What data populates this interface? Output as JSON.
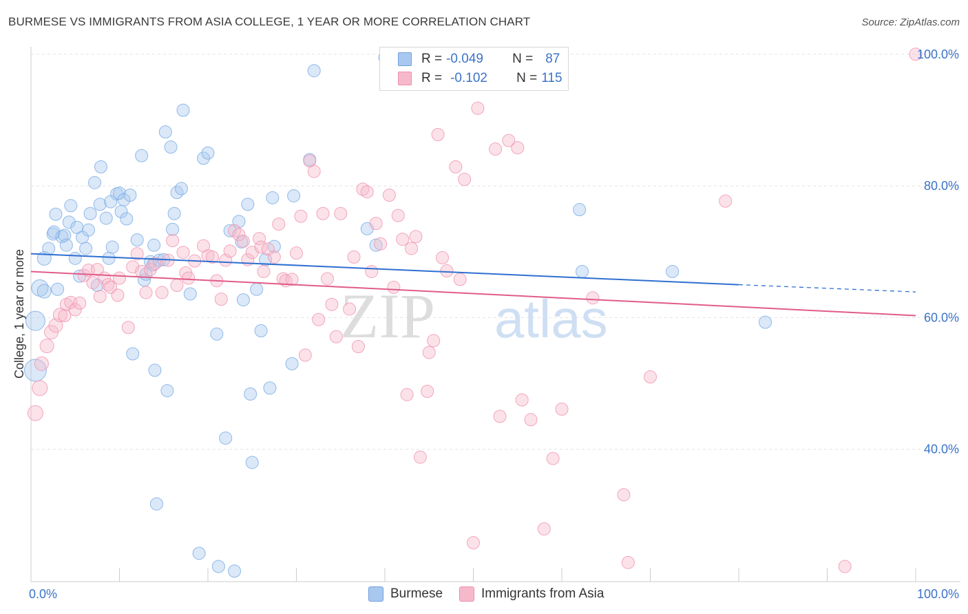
{
  "title": "BURMESE VS IMMIGRANTS FROM ASIA COLLEGE, 1 YEAR OR MORE CORRELATION CHART",
  "source": "Source: ZipAtlas.com",
  "watermark": {
    "zip": "ZIP",
    "atlas": "atlas"
  },
  "legend_top": {
    "rows": [
      {
        "r_label": "R =",
        "r_value": "-0.049",
        "n_label": "N =",
        "n_value": "87",
        "color": "#a9c8ef"
      },
      {
        "r_label": "R =",
        "r_value": "-0.102",
        "n_label": "N =",
        "n_value": "115",
        "color": "#f6b9cb"
      }
    ]
  },
  "legend_bottom": [
    {
      "label": "Burmese",
      "color": "#a9c8ef"
    },
    {
      "label": "Immigrants from Asia",
      "color": "#f6b9cb"
    }
  ],
  "chart_data": {
    "type": "scatter",
    "title": "BURMESE VS IMMIGRANTS FROM ASIA COLLEGE, 1 YEAR OR MORE CORRELATION CHART",
    "xlabel": "",
    "ylabel": "College, 1 year or more",
    "xlim": [
      0,
      100
    ],
    "ylim": [
      20,
      102
    ],
    "x_tick_labels": [
      "0.0%",
      "100.0%"
    ],
    "y_ticks": [
      40,
      60,
      80,
      100
    ],
    "y_tick_labels": [
      "40.0%",
      "60.0%",
      "80.0%",
      "100.0%"
    ],
    "grid": true,
    "series": [
      {
        "name": "Burmese",
        "color": "#7eaee6",
        "fill": "#a9c8ef",
        "trend": {
          "x0": 0,
          "y0": 69.7,
          "x1": 80,
          "y1": 65.0,
          "dash_to": 100,
          "dash_y": 63.9,
          "color": "#2f6fd0"
        },
        "points": [
          [
            0.5,
            52,
            16
          ],
          [
            0.5,
            59.5,
            14
          ],
          [
            1,
            64.5,
            12
          ],
          [
            1.5,
            64,
            10
          ],
          [
            1.5,
            69,
            10
          ],
          [
            2,
            70.5,
            9
          ],
          [
            2.5,
            72.7,
            9
          ],
          [
            2.6,
            73,
            9
          ],
          [
            2.8,
            75.7,
            9
          ],
          [
            3,
            64.3,
            9
          ],
          [
            3.5,
            72.3,
            9
          ],
          [
            3.8,
            72.5,
            9
          ],
          [
            4,
            71,
            9
          ],
          [
            4.3,
            74.5,
            9
          ],
          [
            4.5,
            77,
            9
          ],
          [
            5,
            69,
            9
          ],
          [
            5.2,
            73.7,
            9
          ],
          [
            5.5,
            66.3,
            9
          ],
          [
            5.8,
            72.2,
            9
          ],
          [
            6.2,
            70.5,
            9
          ],
          [
            6.5,
            73.3,
            9
          ],
          [
            6.7,
            75.8,
            9
          ],
          [
            7.2,
            80.5,
            9
          ],
          [
            7.5,
            64.9,
            9
          ],
          [
            7.8,
            77.2,
            9
          ],
          [
            7.9,
            82.9,
            9
          ],
          [
            8.5,
            75.1,
            9
          ],
          [
            8.8,
            69,
            9
          ],
          [
            9,
            77.6,
            9
          ],
          [
            9.2,
            70.7,
            9
          ],
          [
            9.7,
            78.8,
            9
          ],
          [
            10,
            78.9,
            9
          ],
          [
            10.2,
            76.1,
            9
          ],
          [
            10.5,
            77.9,
            9
          ],
          [
            10.8,
            75,
            9
          ],
          [
            11.2,
            78.6,
            9
          ],
          [
            11.5,
            54.5,
            9
          ],
          [
            12,
            71.8,
            9
          ],
          [
            12.5,
            84.6,
            9
          ],
          [
            12.8,
            65.7,
            9
          ],
          [
            13,
            66.6,
            9
          ],
          [
            13.5,
            68.5,
            9
          ],
          [
            13.8,
            68,
            9
          ],
          [
            13.9,
            71,
            9
          ],
          [
            14,
            52,
            9
          ],
          [
            14.2,
            31.7,
            9
          ],
          [
            14.5,
            68.7,
            9
          ],
          [
            15,
            68.8,
            9
          ],
          [
            15.2,
            88.2,
            9
          ],
          [
            15.4,
            48.9,
            9
          ],
          [
            15.8,
            85.9,
            9
          ],
          [
            16,
            73.4,
            9
          ],
          [
            16.2,
            75.8,
            9
          ],
          [
            16.5,
            79,
            9
          ],
          [
            17,
            79.6,
            9
          ],
          [
            17.2,
            91.5,
            9
          ],
          [
            18,
            63.6,
            9
          ],
          [
            19,
            24.2,
            9
          ],
          [
            19.5,
            84.2,
            9
          ],
          [
            20,
            85,
            9
          ],
          [
            21,
            57.5,
            9
          ],
          [
            21.2,
            22.2,
            9
          ],
          [
            22,
            41.7,
            9
          ],
          [
            22.5,
            73.2,
            9
          ],
          [
            23,
            21.5,
            9
          ],
          [
            23.5,
            74.6,
            9
          ],
          [
            23.8,
            71.5,
            9
          ],
          [
            24,
            62.7,
            9
          ],
          [
            24.5,
            77.2,
            9
          ],
          [
            24.8,
            48.4,
            9
          ],
          [
            25,
            38,
            9
          ],
          [
            25.5,
            64.3,
            9
          ],
          [
            26,
            58,
            9
          ],
          [
            26.5,
            68.8,
            9
          ],
          [
            27,
            49.3,
            9
          ],
          [
            27.3,
            78.2,
            9
          ],
          [
            27.5,
            70.8,
            9
          ],
          [
            29.5,
            53,
            9
          ],
          [
            29.7,
            78.5,
            9
          ],
          [
            31.5,
            84,
            9
          ],
          [
            32,
            97.5,
            9
          ],
          [
            38,
            73.5,
            9
          ],
          [
            39,
            71,
            9
          ],
          [
            40,
            99.5,
            9
          ],
          [
            62,
            76.4,
            9
          ],
          [
            62.3,
            67,
            9
          ],
          [
            72.5,
            67,
            9
          ],
          [
            83,
            59.3,
            9
          ]
        ]
      },
      {
        "name": "Immigrants from Asia",
        "color": "#f197b3",
        "fill": "#f6b9cb",
        "trend": {
          "x0": 0,
          "y0": 67.0,
          "x1": 100,
          "y1": 60.3,
          "color": "#e05c88"
        },
        "points": [
          [
            0.5,
            45.5,
            11
          ],
          [
            1,
            49.3,
            11
          ],
          [
            1.2,
            53,
            10
          ],
          [
            1.8,
            55.7,
            10
          ],
          [
            2.3,
            57.8,
            10
          ],
          [
            2.8,
            58.8,
            10
          ],
          [
            3.3,
            60.4,
            10
          ],
          [
            3.8,
            60.3,
            9
          ],
          [
            4,
            62,
            9
          ],
          [
            4.5,
            62.3,
            9
          ],
          [
            5,
            61.2,
            9
          ],
          [
            5.5,
            62.2,
            9
          ],
          [
            6,
            66.4,
            9
          ],
          [
            6.5,
            67.2,
            9
          ],
          [
            7,
            65.3,
            9
          ],
          [
            7.5,
            67.3,
            9
          ],
          [
            7.8,
            63.2,
            9
          ],
          [
            8.3,
            66,
            9
          ],
          [
            8.7,
            65,
            9
          ],
          [
            9,
            64.6,
            9
          ],
          [
            9.8,
            63.4,
            9
          ],
          [
            10,
            66,
            9
          ],
          [
            11,
            58.5,
            9
          ],
          [
            11.5,
            67.7,
            9
          ],
          [
            12,
            69.7,
            9
          ],
          [
            12.5,
            67,
            9
          ],
          [
            13,
            63.8,
            9
          ],
          [
            13.5,
            67.3,
            9
          ],
          [
            14,
            68.2,
            9
          ],
          [
            14.8,
            63.8,
            9
          ],
          [
            15.5,
            68.7,
            9
          ],
          [
            16,
            71.7,
            9
          ],
          [
            16.5,
            64.9,
            9
          ],
          [
            17.2,
            69.9,
            9
          ],
          [
            17.5,
            66.8,
            9
          ],
          [
            17.8,
            66,
            9
          ],
          [
            18.5,
            68.6,
            9
          ],
          [
            19.5,
            70.9,
            9
          ],
          [
            20,
            69.4,
            9
          ],
          [
            20.5,
            69.2,
            9
          ],
          [
            21,
            65.6,
            9
          ],
          [
            21.5,
            62.8,
            9
          ],
          [
            22,
            68.7,
            9
          ],
          [
            22.5,
            70.1,
            9
          ],
          [
            23,
            73.2,
            9
          ],
          [
            23.5,
            72.6,
            9
          ],
          [
            24,
            71.6,
            9
          ],
          [
            24.5,
            68.8,
            9
          ],
          [
            25,
            69.9,
            9
          ],
          [
            25.8,
            72,
            9
          ],
          [
            26,
            70.7,
            9
          ],
          [
            26.3,
            67,
            9
          ],
          [
            26.8,
            70.4,
            9
          ],
          [
            27.5,
            69.2,
            9
          ],
          [
            28,
            74.2,
            9
          ],
          [
            28.5,
            65.9,
            9
          ],
          [
            28.8,
            65.6,
            9
          ],
          [
            29.5,
            65.8,
            9
          ],
          [
            30,
            69.8,
            9
          ],
          [
            30.5,
            75.4,
            9
          ],
          [
            31,
            54.3,
            9
          ],
          [
            31.5,
            83.8,
            9
          ],
          [
            32,
            82.2,
            9
          ],
          [
            32.5,
            59.7,
            9
          ],
          [
            33,
            75.8,
            9
          ],
          [
            33.5,
            65.9,
            9
          ],
          [
            34,
            62,
            9
          ],
          [
            34.5,
            57.1,
            9
          ],
          [
            35,
            75.8,
            9
          ],
          [
            36,
            61.3,
            9
          ],
          [
            36.5,
            69.2,
            9
          ],
          [
            37,
            55.6,
            9
          ],
          [
            37.5,
            79.5,
            9
          ],
          [
            38,
            79.1,
            9
          ],
          [
            38.5,
            67,
            9
          ],
          [
            39,
            74.3,
            9
          ],
          [
            39.5,
            71.2,
            9
          ],
          [
            40.5,
            78.6,
            9
          ],
          [
            41,
            64.6,
            9
          ],
          [
            41.5,
            75.5,
            9
          ],
          [
            42,
            71.9,
            9
          ],
          [
            42.5,
            48.3,
            9
          ],
          [
            43,
            70.5,
            9
          ],
          [
            43.5,
            72.3,
            9
          ],
          [
            44,
            38.8,
            9
          ],
          [
            44.8,
            48.8,
            9
          ],
          [
            45,
            54.7,
            9
          ],
          [
            45.5,
            56.5,
            9
          ],
          [
            46,
            87.8,
            9
          ],
          [
            46.5,
            69.1,
            9
          ],
          [
            47,
            67.1,
            9
          ],
          [
            48,
            82.9,
            9
          ],
          [
            48.5,
            65.8,
            9
          ],
          [
            49,
            81,
            9
          ],
          [
            50,
            25.8,
            9
          ],
          [
            50.5,
            91.8,
            9
          ],
          [
            52.5,
            85.6,
            9
          ],
          [
            53,
            45,
            9
          ],
          [
            54,
            86.9,
            9
          ],
          [
            55,
            85.8,
            9
          ],
          [
            55.5,
            47.5,
            9
          ],
          [
            56.5,
            44.5,
            9
          ],
          [
            58,
            27.9,
            9
          ],
          [
            59,
            38.6,
            9
          ],
          [
            60,
            46.1,
            9
          ],
          [
            63.5,
            63,
            9
          ],
          [
            67,
            33.1,
            9
          ],
          [
            67.5,
            22.8,
            9
          ],
          [
            70,
            51,
            9
          ],
          [
            78.5,
            77.7,
            9
          ],
          [
            92,
            22.2,
            9
          ],
          [
            100,
            100,
            9
          ]
        ]
      }
    ]
  }
}
